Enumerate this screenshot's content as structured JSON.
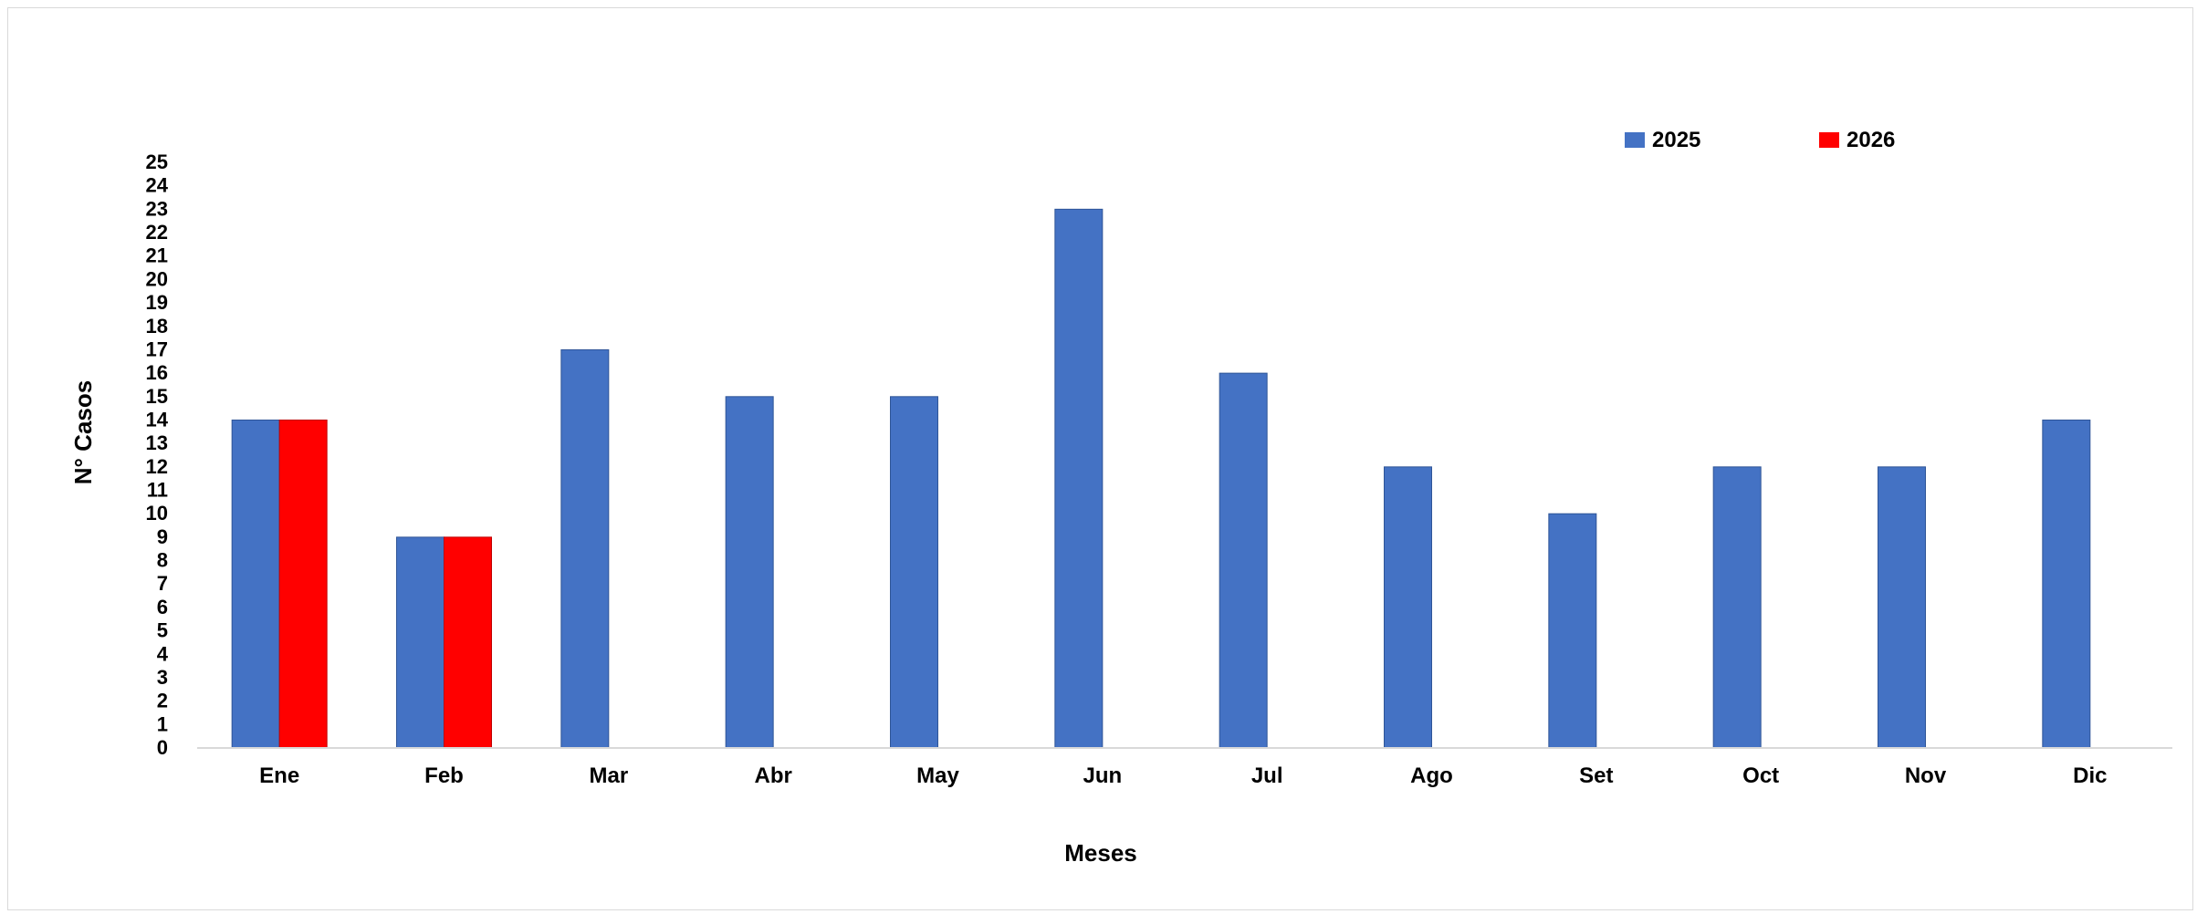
{
  "chart_data": {
    "type": "bar",
    "categories": [
      "Ene",
      "Feb",
      "Mar",
      "Abr",
      "May",
      "Jun",
      "Jul",
      "Ago",
      "Set",
      "Oct",
      "Nov",
      "Dic"
    ],
    "series": [
      {
        "name": "2025",
        "color": "#4472C4",
        "values": [
          14,
          9,
          17,
          15,
          15,
          23,
          16,
          12,
          10,
          12,
          12,
          14
        ]
      },
      {
        "name": "2026",
        "color": "#FF0000",
        "values": [
          14,
          9,
          null,
          null,
          null,
          null,
          null,
          null,
          null,
          null,
          null,
          null
        ]
      }
    ],
    "xlabel": "Meses",
    "ylabel": "N° Casos",
    "ylim": [
      0,
      25
    ],
    "ytick_step": 1,
    "grid": false,
    "legend_position": "top-right"
  }
}
